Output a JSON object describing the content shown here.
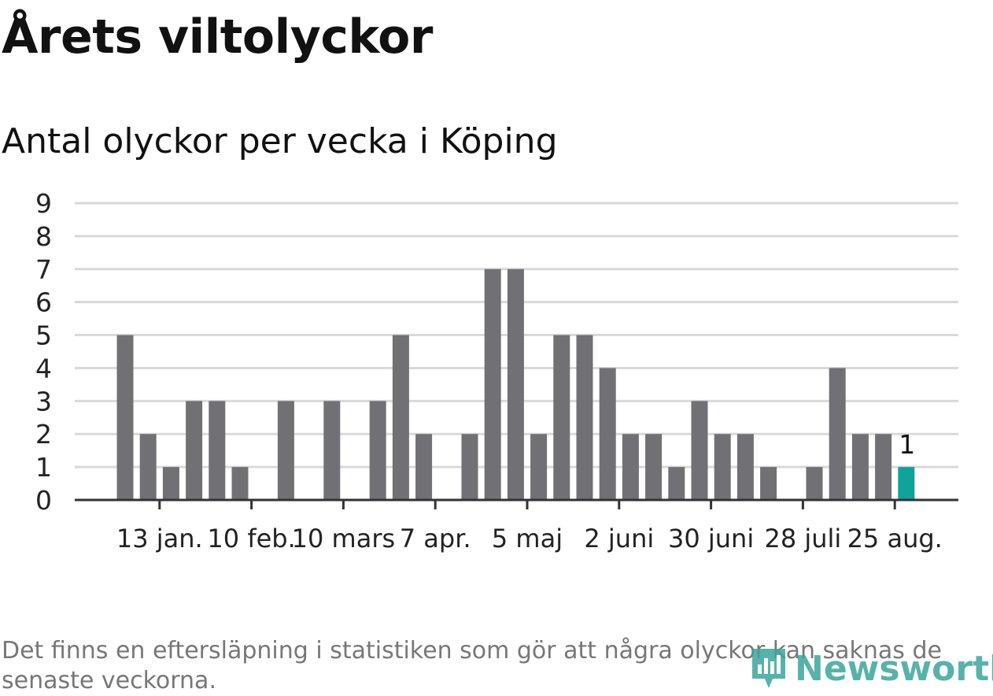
{
  "title": "Årets viltolyckor",
  "subtitle": "Antal olyckor per vecka i Köping",
  "note": "Det finns en eftersläpning i statistiken som gör att några olyckor kan saknas de senaste veckorna.",
  "logo": {
    "text": "Newsworthy",
    "icon": "newsworthy-logo-icon"
  },
  "colors": {
    "bar": "#717075",
    "highlight": "#10a39b",
    "grid": "#d9d9d9",
    "axis": "#333333",
    "logo": "#3aa69b"
  },
  "chart_data": {
    "type": "bar",
    "y_ticks": [
      "0",
      "1",
      "2",
      "3",
      "4",
      "5",
      "6",
      "7",
      "8",
      "9"
    ],
    "ylim": [
      0,
      9
    ],
    "x_tick_labels": [
      "13 jan.",
      "10 feb.",
      "10 mars",
      "7 apr.",
      "5 maj",
      "2 juni",
      "30 juni",
      "28 juli",
      "25 aug."
    ],
    "x_tick_week_index": [
      1.5,
      5.5,
      9.5,
      13.5,
      17.5,
      21.5,
      25.5,
      29.5,
      33.5
    ],
    "values": [
      5,
      2,
      1,
      3,
      3,
      1,
      0,
      3,
      0,
      3,
      0,
      3,
      5,
      2,
      0,
      2,
      7,
      7,
      2,
      5,
      5,
      4,
      2,
      2,
      1,
      3,
      2,
      2,
      1,
      0,
      1,
      4,
      2,
      2,
      1
    ],
    "highlight_index": 34,
    "data_label": "1",
    "grid": true,
    "legend": "none"
  }
}
